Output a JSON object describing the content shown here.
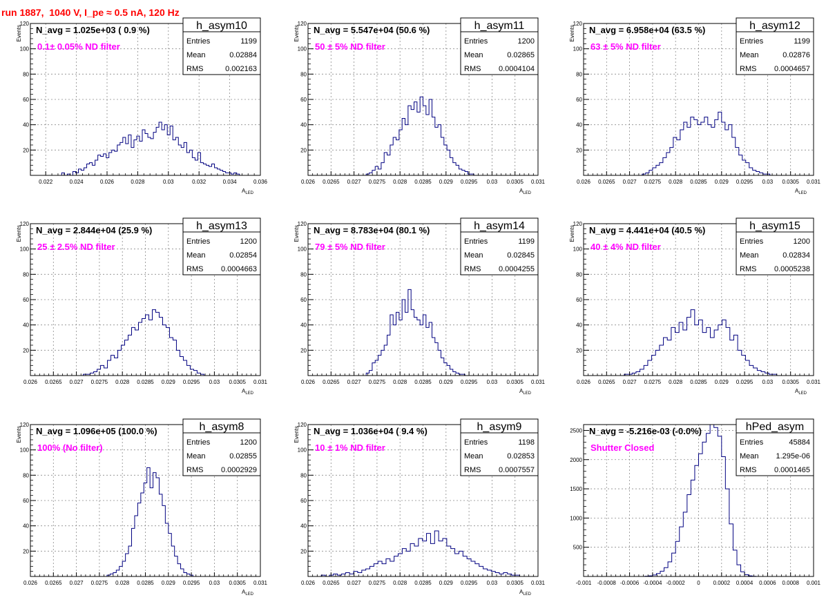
{
  "page": {
    "run_title": "run 1887,  1040 V, I_pe ≈ 0.5 nA, 120 Hz"
  },
  "chart_data": [
    {
      "type": "bar",
      "hist_name": "h_asym10",
      "navg_text": "N_avg = 1.025e+03 ( 0.9 %)",
      "filter_text": "0.1± 0.05% ND filter",
      "stats": [
        [
          "Entries",
          "1199"
        ],
        [
          "Mean",
          "0.02884"
        ],
        [
          "RMS",
          "0.002163"
        ]
      ],
      "xlabel": "A",
      "xlabel_sub": "LED",
      "ylabel": "Events",
      "xlim": [
        0.021,
        0.036
      ],
      "ylim": [
        0,
        120
      ],
      "xticks": [
        0.022,
        0.024,
        0.026,
        0.028,
        0.03,
        0.032,
        0.034,
        0.036
      ],
      "xtick_labels": [
        "0.022",
        "0.024",
        "0.026",
        "0.028",
        "0.03",
        "0.032",
        "0.034",
        "0.036"
      ],
      "yticks": [
        20,
        40,
        60,
        80,
        100,
        120
      ],
      "ytick_labels": [
        "20",
        "40",
        "60",
        "80",
        "100",
        "120"
      ],
      "x_range": [
        0.0225,
        0.035
      ],
      "values": [
        0,
        0,
        0,
        2,
        0,
        1,
        0,
        3,
        2,
        5,
        4,
        6,
        9,
        10,
        8,
        12,
        16,
        15,
        17,
        14,
        18,
        20,
        19,
        24,
        26,
        30,
        25,
        32,
        22,
        28,
        31,
        27,
        36,
        33,
        30,
        29,
        34,
        38,
        42,
        36,
        40,
        32,
        39,
        28,
        30,
        24,
        22,
        26,
        18,
        20,
        14,
        12,
        18,
        10,
        9,
        8,
        7,
        9,
        6,
        5,
        4,
        3,
        2,
        2,
        1,
        2,
        1,
        0,
        0
      ]
    },
    {
      "type": "bar",
      "hist_name": "h_asym11",
      "navg_text": "N_avg = 5.547e+04 (50.6 %)",
      "filter_text": " 50 ± 5% ND filter",
      "stats": [
        [
          "Entries",
          "1200"
        ],
        [
          "Mean",
          "0.02865"
        ],
        [
          "RMS",
          "0.0004104"
        ]
      ],
      "xlabel": "A",
      "xlabel_sub": "LED",
      "ylabel": "Events",
      "xlim": [
        0.026,
        0.031
      ],
      "ylim": [
        0,
        120
      ],
      "xticks": [
        0.026,
        0.0265,
        0.027,
        0.0275,
        0.028,
        0.0285,
        0.029,
        0.0295,
        0.03,
        0.0305,
        0.031
      ],
      "xtick_labels": [
        "0.026",
        "0.0265",
        "0.027",
        "0.0275",
        "0.028",
        "0.0285",
        "0.029",
        "0.0295",
        "0.03",
        "0.0305",
        "0.031"
      ],
      "yticks": [
        20,
        40,
        60,
        80,
        100,
        120
      ],
      "ytick_labels": [
        "20",
        "40",
        "60",
        "80",
        "100",
        "120"
      ],
      "x_range": [
        0.0272,
        0.0298
      ],
      "values": [
        0,
        1,
        2,
        4,
        7,
        5,
        10,
        18,
        16,
        24,
        30,
        28,
        36,
        45,
        40,
        55,
        52,
        58,
        50,
        62,
        55,
        48,
        60,
        46,
        38,
        40,
        30,
        24,
        20,
        14,
        10,
        8,
        5,
        4,
        3,
        1,
        1,
        0,
        0,
        0
      ]
    },
    {
      "type": "bar",
      "hist_name": "h_asym12",
      "navg_text": "N_avg = 6.958e+04 (63.5 %)",
      "filter_text": " 63 ± 5% ND filter",
      "stats": [
        [
          "Entries",
          "1199"
        ],
        [
          "Mean",
          "0.02876"
        ],
        [
          "RMS",
          "0.0004657"
        ]
      ],
      "xlabel": "A",
      "xlabel_sub": "LED",
      "ylabel": "Events",
      "xlim": [
        0.026,
        0.031
      ],
      "ylim": [
        0,
        120
      ],
      "xticks": [
        0.026,
        0.0265,
        0.027,
        0.0275,
        0.028,
        0.0285,
        0.029,
        0.0295,
        0.03,
        0.0305,
        0.031
      ],
      "xtick_labels": [
        "0.026",
        "0.0265",
        "0.027",
        "0.0275",
        "0.028",
        "0.0285",
        "0.029",
        "0.0295",
        "0.03",
        "0.0305",
        "0.031"
      ],
      "yticks": [
        20,
        40,
        60,
        80,
        100,
        120
      ],
      "ytick_labels": [
        "20",
        "40",
        "60",
        "80",
        "100",
        "120"
      ],
      "x_range": [
        0.0272,
        0.0302
      ],
      "values": [
        0,
        1,
        2,
        4,
        6,
        8,
        10,
        14,
        18,
        22,
        30,
        28,
        36,
        42,
        38,
        46,
        44,
        40,
        42,
        46,
        40,
        38,
        44,
        50,
        42,
        36,
        40,
        30,
        22,
        16,
        12,
        10,
        6,
        4,
        3,
        2,
        1,
        1,
        0,
        0
      ]
    },
    {
      "type": "bar",
      "hist_name": "h_asym13",
      "navg_text": "N_avg = 2.844e+04 (25.9 %)",
      "filter_text": " 25 ± 2.5% ND filter",
      "stats": [
        [
          "Entries",
          "1200"
        ],
        [
          "Mean",
          "0.02854"
        ],
        [
          "RMS",
          "0.0004663"
        ]
      ],
      "xlabel": "A",
      "xlabel_sub": "LED",
      "ylabel": "Events",
      "xlim": [
        0.026,
        0.031
      ],
      "ylim": [
        0,
        120
      ],
      "xticks": [
        0.026,
        0.0265,
        0.027,
        0.0275,
        0.028,
        0.0285,
        0.029,
        0.0295,
        0.03,
        0.0305,
        0.031
      ],
      "xtick_labels": [
        "0.026",
        "0.0265",
        "0.027",
        "0.0275",
        "0.028",
        "0.0285",
        "0.029",
        "0.0295",
        "0.03",
        "0.0305",
        "0.031"
      ],
      "yticks": [
        20,
        40,
        60,
        80,
        100,
        120
      ],
      "ytick_labels": [
        "20",
        "40",
        "60",
        "80",
        "100",
        "120"
      ],
      "x_range": [
        0.027,
        0.03
      ],
      "values": [
        0,
        0,
        1,
        1,
        2,
        3,
        5,
        8,
        6,
        12,
        16,
        14,
        20,
        24,
        28,
        32,
        38,
        36,
        42,
        45,
        48,
        44,
        52,
        50,
        46,
        40,
        38,
        30,
        28,
        20,
        15,
        12,
        8,
        5,
        4,
        2,
        1,
        0,
        0,
        0
      ]
    },
    {
      "type": "bar",
      "hist_name": "h_asym14",
      "navg_text": "N_avg = 8.783e+04 (80.1 %)",
      "filter_text": " 79 ± 5% ND filter",
      "stats": [
        [
          "Entries",
          "1199"
        ],
        [
          "Mean",
          "0.02845"
        ],
        [
          "RMS",
          "0.0004255"
        ]
      ],
      "xlabel": "A",
      "xlabel_sub": "LED",
      "ylabel": "Events",
      "xlim": [
        0.026,
        0.031
      ],
      "ylim": [
        0,
        120
      ],
      "xticks": [
        0.026,
        0.0265,
        0.027,
        0.0275,
        0.028,
        0.0285,
        0.029,
        0.0295,
        0.03,
        0.0305,
        0.031
      ],
      "xtick_labels": [
        "0.026",
        "0.0265",
        "0.027",
        "0.0275",
        "0.028",
        "0.0285",
        "0.029",
        "0.0295",
        "0.03",
        "0.0305",
        "0.031"
      ],
      "yticks": [
        20,
        40,
        60,
        80,
        100,
        120
      ],
      "ytick_labels": [
        "20",
        "40",
        "60",
        "80",
        "100",
        "120"
      ],
      "x_range": [
        0.0272,
        0.0298
      ],
      "values": [
        0,
        2,
        4,
        10,
        12,
        16,
        20,
        24,
        32,
        48,
        40,
        50,
        44,
        60,
        50,
        68,
        52,
        46,
        44,
        40,
        48,
        38,
        42,
        30,
        26,
        20,
        14,
        10,
        8,
        5,
        3,
        2,
        1,
        1,
        0,
        0,
        0,
        0,
        0,
        0
      ]
    },
    {
      "type": "bar",
      "hist_name": "h_asym15",
      "navg_text": "N_avg = 4.441e+04 (40.5 %)",
      "filter_text": " 40 ± 4% ND filter",
      "stats": [
        [
          "Entries",
          "1200"
        ],
        [
          "Mean",
          "0.02834"
        ],
        [
          "RMS",
          "0.0005238"
        ]
      ],
      "xlabel": "A",
      "xlabel_sub": "LED",
      "ylabel": "Events",
      "xlim": [
        0.026,
        0.031
      ],
      "ylim": [
        0,
        120
      ],
      "xticks": [
        0.026,
        0.0265,
        0.027,
        0.0275,
        0.028,
        0.0285,
        0.029,
        0.0295,
        0.03,
        0.0305,
        0.031
      ],
      "xtick_labels": [
        "0.026",
        "0.0265",
        "0.027",
        "0.0275",
        "0.028",
        "0.0285",
        "0.029",
        "0.0295",
        "0.03",
        "0.0305",
        "0.031"
      ],
      "yticks": [
        20,
        40,
        60,
        80,
        100,
        120
      ],
      "ytick_labels": [
        "20",
        "40",
        "60",
        "80",
        "100",
        "120"
      ],
      "x_range": [
        0.0268,
        0.0302
      ],
      "values": [
        0,
        1,
        1,
        2,
        3,
        5,
        8,
        12,
        16,
        20,
        24,
        30,
        28,
        38,
        34,
        42,
        36,
        46,
        52,
        40,
        44,
        34,
        38,
        30,
        36,
        40,
        44,
        38,
        28,
        32,
        20,
        16,
        12,
        8,
        6,
        4,
        3,
        2,
        1,
        1
      ]
    },
    {
      "type": "bar",
      "hist_name": "h_asym8",
      "navg_text": "N_avg = 1.096e+05 (100.0 %)",
      "filter_text": " 100% (No filter)",
      "stats": [
        [
          "Entries",
          "1200"
        ],
        [
          "Mean",
          "0.02855"
        ],
        [
          "RMS",
          "0.0002929"
        ]
      ],
      "xlabel": "A",
      "xlabel_sub": "LED",
      "ylabel": "Events",
      "xlim": [
        0.026,
        0.031
      ],
      "ylim": [
        0,
        120
      ],
      "xticks": [
        0.026,
        0.0265,
        0.027,
        0.0275,
        0.028,
        0.0285,
        0.029,
        0.0295,
        0.03,
        0.0305,
        0.031
      ],
      "xtick_labels": [
        "0.026",
        "0.0265",
        "0.027",
        "0.0275",
        "0.028",
        "0.0285",
        "0.029",
        "0.0295",
        "0.03",
        "0.0305",
        "0.031"
      ],
      "yticks": [
        20,
        40,
        60,
        80,
        100,
        120
      ],
      "ytick_labels": [
        "20",
        "40",
        "60",
        "80",
        "100",
        "120"
      ],
      "x_range": [
        0.0276,
        0.0296
      ],
      "values": [
        0,
        1,
        2,
        3,
        5,
        8,
        12,
        18,
        24,
        38,
        48,
        58,
        66,
        74,
        86,
        70,
        82,
        78,
        65,
        56,
        42,
        34,
        24,
        16,
        10,
        6,
        3,
        2,
        1,
        0
      ]
    },
    {
      "type": "bar",
      "hist_name": "h_asym9",
      "navg_text": "N_avg = 1.036e+04 ( 9.4 %)",
      "filter_text": "10 ± 1% ND filter",
      "stats": [
        [
          "Entries",
          "1198"
        ],
        [
          "Mean",
          "0.02853"
        ],
        [
          "RMS",
          "0.0007557"
        ]
      ],
      "xlabel": "A",
      "xlabel_sub": "LED",
      "ylabel": "Events",
      "xlim": [
        0.026,
        0.031
      ],
      "ylim": [
        0,
        120
      ],
      "xticks": [
        0.026,
        0.0265,
        0.027,
        0.0275,
        0.028,
        0.0285,
        0.029,
        0.0295,
        0.03,
        0.0305,
        0.031
      ],
      "xtick_labels": [
        "0.026",
        "0.0265",
        "0.027",
        "0.0275",
        "0.028",
        "0.0285",
        "0.029",
        "0.0295",
        "0.03",
        "0.0305",
        "0.031"
      ],
      "yticks": [
        20,
        40,
        60,
        80,
        100,
        120
      ],
      "ytick_labels": [
        "20",
        "40",
        "60",
        "80",
        "100",
        "120"
      ],
      "x_range": [
        0.0262,
        0.0306
      ],
      "values": [
        0,
        1,
        0,
        1,
        2,
        1,
        2,
        3,
        2,
        4,
        3,
        5,
        6,
        8,
        10,
        12,
        10,
        14,
        12,
        16,
        18,
        22,
        20,
        26,
        24,
        30,
        28,
        34,
        26,
        36,
        28,
        30,
        24,
        22,
        18,
        20,
        16,
        14,
        12,
        10,
        8,
        6,
        5,
        4,
        3,
        2,
        3,
        2,
        1,
        1
      ]
    },
    {
      "type": "bar",
      "hist_name": "hPed_asym",
      "navg_text": "N_avg = -5.216e-03 (-0.0%)",
      "filter_text": "Shutter Closed",
      "stats": [
        [
          "Entries",
          "45884"
        ],
        [
          "Mean",
          "1.295e-06"
        ],
        [
          "RMS",
          "0.0001465"
        ]
      ],
      "xlabel": "",
      "xlabel_sub": "",
      "ylabel": "",
      "xlim": [
        -0.001,
        0.001
      ],
      "ylim": [
        0,
        2600
      ],
      "xticks": [
        -0.001,
        -0.0008,
        -0.0006,
        -0.0004,
        -0.0002,
        0,
        0.0002,
        0.0004,
        0.0006,
        0.0008,
        0.001
      ],
      "xtick_labels": [
        "-0.001",
        "-0.0008",
        "-0.0006",
        "-0.0004",
        "-0.0002",
        "0",
        "0.0002",
        "0.0004",
        "0.0006",
        "0.0008",
        "0.001"
      ],
      "yticks": [
        500,
        1000,
        1500,
        2000,
        2500
      ],
      "ytick_labels": [
        "500",
        "1000",
        "1500",
        "2000",
        "2500"
      ],
      "x_range": [
        -0.0005,
        0.0005
      ],
      "values": [
        0,
        5,
        10,
        25,
        50,
        90,
        150,
        250,
        400,
        600,
        850,
        1100,
        1400,
        1650,
        1900,
        2100,
        2300,
        2450,
        2600,
        2550,
        2400,
        2050,
        1500,
        900,
        450,
        200,
        80,
        30,
        10,
        3
      ]
    }
  ]
}
